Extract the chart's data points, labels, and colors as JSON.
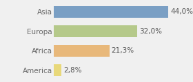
{
  "categories": [
    "America",
    "Africa",
    "Europa",
    "Asia"
  ],
  "values": [
    2.8,
    21.3,
    32.0,
    44.0
  ],
  "labels": [
    "2,8%",
    "21,3%",
    "32,0%",
    "44,0%"
  ],
  "bar_colors": [
    "#e8d87a",
    "#e8b87a",
    "#b5c98a",
    "#7a9fc4"
  ],
  "background_color": "#f0f0f0",
  "xlim": [
    0,
    52
  ],
  "bar_height": 0.6,
  "label_fontsize": 7.5,
  "tick_fontsize": 7.5,
  "figsize": [
    2.8,
    1.2
  ],
  "dpi": 100
}
